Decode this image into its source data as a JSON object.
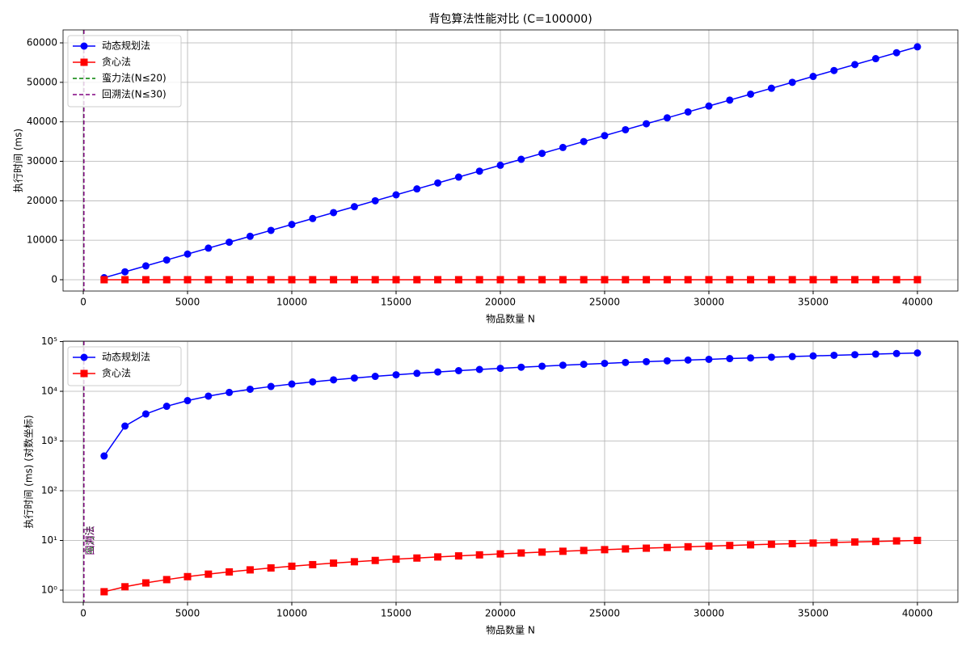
{
  "chart_data": [
    {
      "type": "line",
      "title": "背包算法性能对比 (C=100000)",
      "x_label": "物品数量 N",
      "y_label": "执行时间 (ms)",
      "x": [
        1000,
        2000,
        3000,
        4000,
        5000,
        6000,
        7000,
        8000,
        9000,
        10000,
        11000,
        12000,
        13000,
        14000,
        15000,
        16000,
        17000,
        18000,
        19000,
        20000,
        21000,
        22000,
        23000,
        24000,
        25000,
        26000,
        27000,
        28000,
        29000,
        30000,
        31000,
        32000,
        33000,
        34000,
        35000,
        36000,
        37000,
        38000,
        39000,
        40000
      ],
      "series": [
        {
          "name": "动态规划法",
          "color": "#0000ff",
          "marker": "circle",
          "values": [
            500,
            2000,
            3500,
            5000,
            6500,
            8000,
            9500,
            11000,
            12500,
            14000,
            15500,
            17000,
            18500,
            20000,
            21500,
            23000,
            24500,
            26000,
            27500,
            29000,
            30500,
            32000,
            33500,
            35000,
            36500,
            38000,
            39500,
            41000,
            42500,
            44000,
            45500,
            47000,
            48500,
            50000,
            51500,
            53000,
            54500,
            56000,
            57500,
            59000
          ]
        },
        {
          "name": "贪心法",
          "color": "#ff0000",
          "marker": "square",
          "values": [
            0.93,
            1.17,
            1.4,
            1.63,
            1.87,
            2.1,
            2.33,
            2.56,
            2.8,
            3.03,
            3.26,
            3.5,
            3.73,
            3.96,
            4.2,
            4.43,
            4.66,
            4.89,
            5.13,
            5.36,
            5.59,
            5.83,
            6.06,
            6.29,
            6.53,
            6.76,
            6.99,
            7.22,
            7.46,
            7.69,
            7.92,
            8.16,
            8.39,
            8.62,
            8.86,
            9.09,
            9.32,
            9.55,
            9.79,
            10.02
          ]
        }
      ],
      "vlines": [
        {
          "name": "蛮力法(N≤20)",
          "x": 20,
          "color": "#008000"
        },
        {
          "name": "回溯法(N≤30)",
          "x": 30,
          "color": "#800080"
        }
      ],
      "xlim": [
        -970,
        41940
      ],
      "xticks": [
        0,
        5000,
        10000,
        15000,
        20000,
        25000,
        30000,
        35000,
        40000
      ],
      "ylim": [
        -2870,
        63280
      ],
      "yticks": [
        0,
        10000,
        20000,
        30000,
        40000,
        50000,
        60000
      ],
      "grid": true,
      "legend": "upper left",
      "log_y": false
    },
    {
      "type": "line",
      "x_label": "物品数量 N",
      "y_label": "执行时间 (ms) (对数坐标)",
      "x": [
        1000,
        2000,
        3000,
        4000,
        5000,
        6000,
        7000,
        8000,
        9000,
        10000,
        11000,
        12000,
        13000,
        14000,
        15000,
        16000,
        17000,
        18000,
        19000,
        20000,
        21000,
        22000,
        23000,
        24000,
        25000,
        26000,
        27000,
        28000,
        29000,
        30000,
        31000,
        32000,
        33000,
        34000,
        35000,
        36000,
        37000,
        38000,
        39000,
        40000
      ],
      "series": [
        {
          "name": "动态规划法",
          "color": "#0000ff",
          "marker": "circle",
          "values": [
            500,
            2000,
            3500,
            5000,
            6500,
            8000,
            9500,
            11000,
            12500,
            14000,
            15500,
            17000,
            18500,
            20000,
            21500,
            23000,
            24500,
            26000,
            27500,
            29000,
            30500,
            32000,
            33500,
            35000,
            36500,
            38000,
            39500,
            41000,
            42500,
            44000,
            45500,
            47000,
            48500,
            50000,
            51500,
            53000,
            54500,
            56000,
            57500,
            59000
          ]
        },
        {
          "name": "贪心法",
          "color": "#ff0000",
          "marker": "square",
          "values": [
            0.93,
            1.17,
            1.4,
            1.63,
            1.87,
            2.1,
            2.33,
            2.56,
            2.8,
            3.03,
            3.26,
            3.5,
            3.73,
            3.96,
            4.2,
            4.43,
            4.66,
            4.89,
            5.13,
            5.36,
            5.59,
            5.83,
            6.06,
            6.29,
            6.53,
            6.76,
            6.99,
            7.22,
            7.46,
            7.69,
            7.92,
            8.16,
            8.39,
            8.62,
            8.86,
            9.09,
            9.32,
            9.55,
            9.79,
            10.02
          ]
        }
      ],
      "vlines": [
        {
          "label": "蛮力法",
          "x": 20,
          "color": "#008000"
        },
        {
          "label": "回溯法",
          "x": 30,
          "color": "#800080"
        }
      ],
      "xlim": [
        -970,
        41940
      ],
      "xticks": [
        0,
        5000,
        10000,
        15000,
        20000,
        25000,
        30000,
        35000,
        40000
      ],
      "ylim": [
        0.57,
        102000
      ],
      "yticks": [
        {
          "value": 1,
          "label": "10⁰"
        },
        {
          "value": 10,
          "label": "10¹"
        },
        {
          "value": 100,
          "label": "10²"
        },
        {
          "value": 1000,
          "label": "10³"
        },
        {
          "value": 10000,
          "label": "10⁴"
        },
        {
          "value": 100000,
          "label": "10⁵"
        }
      ],
      "grid": true,
      "legend": "upper left",
      "log_y": true
    }
  ]
}
